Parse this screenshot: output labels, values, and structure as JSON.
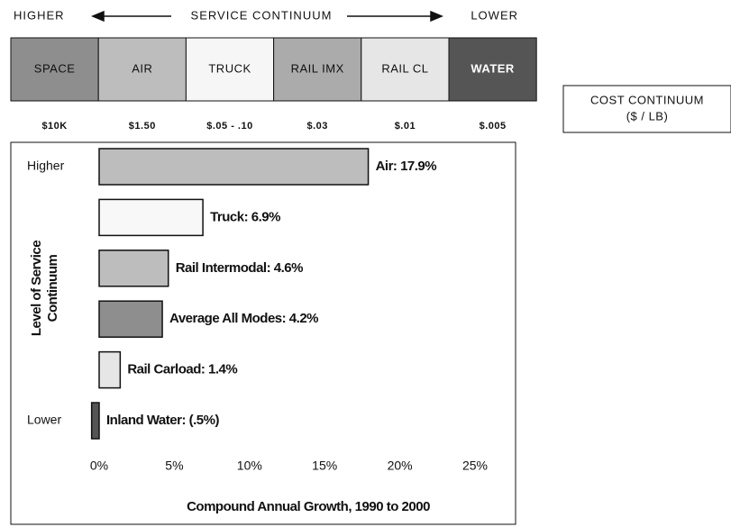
{
  "header": {
    "left": "HIGHER",
    "title": "SERVICE CONTINUUM",
    "right": "LOWER"
  },
  "service_boxes": [
    {
      "label": "SPACE",
      "color": "#8e8e8e"
    },
    {
      "label": "AIR",
      "color": "#bdbdbd"
    },
    {
      "label": "TRUCK",
      "color": "#f6f6f6"
    },
    {
      "label": "RAIL IMX",
      "color": "#ababab"
    },
    {
      "label": "RAIL CL",
      "color": "#e6e6e6"
    },
    {
      "label": "WATER",
      "color": "#555555"
    }
  ],
  "costs": [
    "$10K",
    "$1.50",
    "$.05 - .10",
    "$.03",
    "$.01",
    "$.005"
  ],
  "cost_box": {
    "title": "COST CONTINUUM",
    "unit": "($ / LB)"
  },
  "chart_data": {
    "type": "bar",
    "orientation": "horizontal",
    "y_label": "Level of Service Continuum",
    "y_top_label": "Higher",
    "y_bottom_label": "Lower",
    "x_label": "Compound Annual Growth, 1990 to 2000",
    "values": [
      17.9,
      6.9,
      4.6,
      4.2,
      1.4,
      -0.5
    ],
    "value_labels": [
      "Air: 17.9%",
      "Truck: 6.9%",
      "Rail Intermodal: 4.6%",
      "Average All Modes: 4.2%",
      "Rail Carload: 1.4%",
      "Inland Water: (.5%)"
    ],
    "colors": [
      "#bdbdbd",
      "#f8f8f8",
      "#bdbdbd",
      "#8e8e8e",
      "#e6e6e6",
      "#555555"
    ],
    "xlim": [
      0,
      25
    ],
    "xticks": [
      {
        "value": 0,
        "label": "0%"
      },
      {
        "value": 5,
        "label": "5%"
      },
      {
        "value": 10,
        "label": "10%"
      },
      {
        "value": 15,
        "label": "15%"
      },
      {
        "value": 20,
        "label": "20%"
      },
      {
        "value": 25,
        "label": "25%"
      }
    ],
    "grid": false
  }
}
